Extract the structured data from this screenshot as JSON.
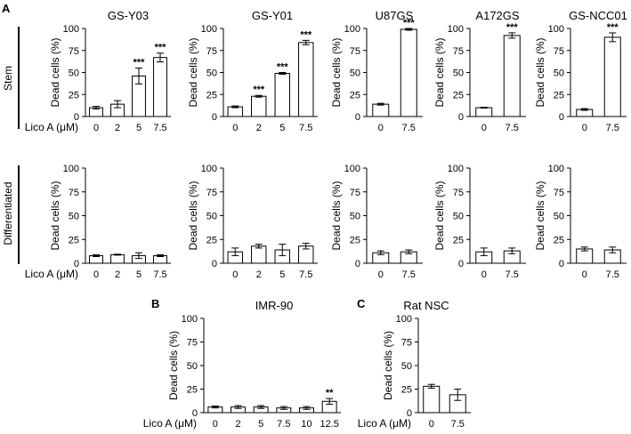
{
  "panel_letters": [
    "A",
    "B",
    "C"
  ],
  "row_labels": {
    "stem": "Stem",
    "differentiated": "Differentiated"
  },
  "ylabel": "Dead cells (%)",
  "x_label": "Lico A (μM)",
  "yticks": [
    "0",
    "25",
    "50",
    "75",
    "100"
  ],
  "chart_data": [
    {
      "id": "stem-gsy03",
      "type": "bar",
      "title": "GS-Y03",
      "row": "Stem",
      "ylabel": "Dead cells (%)",
      "xlabel": "Lico A (μM)",
      "ylim": [
        0,
        100
      ],
      "categories": [
        "0",
        "2",
        "5",
        "7.5"
      ],
      "values": [
        10,
        14,
        46,
        67
      ],
      "errors": [
        1.5,
        4,
        9,
        5
      ],
      "significance": [
        "",
        "",
        "***",
        "***"
      ]
    },
    {
      "id": "stem-gsy01",
      "type": "bar",
      "title": "GS-Y01",
      "row": "Stem",
      "ylabel": "Dead cells (%)",
      "xlabel": "Lico A (μM)",
      "ylim": [
        0,
        100
      ],
      "categories": [
        "0",
        "2",
        "5",
        "7.5"
      ],
      "values": [
        11,
        23,
        49,
        84
      ],
      "errors": [
        1,
        1,
        1,
        2.5
      ],
      "significance": [
        "",
        "***",
        "***",
        "***"
      ]
    },
    {
      "id": "stem-u87gs",
      "type": "bar",
      "title": "U87GS",
      "row": "Stem",
      "ylabel": "Dead cells (%)",
      "xlabel": "Lico A (μM)",
      "ylim": [
        0,
        100
      ],
      "categories": [
        "0",
        "7.5"
      ],
      "values": [
        14,
        99
      ],
      "errors": [
        1,
        1
      ],
      "significance": [
        "",
        "***"
      ]
    },
    {
      "id": "stem-a172gs",
      "type": "bar",
      "title": "A172GS",
      "row": "Stem",
      "ylabel": "Dead cells (%)",
      "xlabel": "Lico A (μM)",
      "ylim": [
        0,
        100
      ],
      "categories": [
        "0",
        "7.5"
      ],
      "values": [
        10,
        92
      ],
      "errors": [
        0.5,
        3
      ],
      "significance": [
        "",
        "***"
      ]
    },
    {
      "id": "stem-gsncc01",
      "type": "bar",
      "title": "GS-NCC01",
      "row": "Stem",
      "ylabel": "Dead cells (%)",
      "xlabel": "Lico A (μM)",
      "ylim": [
        0,
        100
      ],
      "categories": [
        "0",
        "7.5"
      ],
      "values": [
        8,
        90
      ],
      "errors": [
        1,
        5
      ],
      "significance": [
        "",
        "***"
      ]
    },
    {
      "id": "diff-gsy03",
      "type": "bar",
      "title": "",
      "row": "Differentiated",
      "ylabel": "Dead cells (%)",
      "xlabel": "Lico A (μM)",
      "ylim": [
        0,
        100
      ],
      "categories": [
        "0",
        "2",
        "5",
        "7.5"
      ],
      "values": [
        8,
        9,
        8,
        8
      ],
      "errors": [
        1,
        0.5,
        3,
        1
      ],
      "significance": [
        "",
        "",
        "",
        ""
      ]
    },
    {
      "id": "diff-gsy01",
      "type": "bar",
      "title": "",
      "row": "Differentiated",
      "ylabel": "Dead cells (%)",
      "xlabel": "Lico A (μM)",
      "ylim": [
        0,
        100
      ],
      "categories": [
        "0",
        "2",
        "5",
        "7.5"
      ],
      "values": [
        12,
        18,
        14,
        18
      ],
      "errors": [
        4,
        2,
        6,
        3
      ],
      "significance": [
        "",
        "",
        "",
        ""
      ]
    },
    {
      "id": "diff-u87gs",
      "type": "bar",
      "title": "",
      "row": "Differentiated",
      "ylabel": "Dead cells (%)",
      "xlabel": "Lico A (μM)",
      "ylim": [
        0,
        100
      ],
      "categories": [
        "0",
        "7.5"
      ],
      "values": [
        11,
        12
      ],
      "errors": [
        2,
        2
      ],
      "significance": [
        "",
        ""
      ]
    },
    {
      "id": "diff-a172gs",
      "type": "bar",
      "title": "",
      "row": "Differentiated",
      "ylabel": "Dead cells (%)",
      "xlabel": "Lico A (μM)",
      "ylim": [
        0,
        100
      ],
      "categories": [
        "0",
        "7.5"
      ],
      "values": [
        12,
        13
      ],
      "errors": [
        4,
        3
      ],
      "significance": [
        "",
        ""
      ]
    },
    {
      "id": "diff-gsncc01",
      "type": "bar",
      "title": "",
      "row": "Differentiated",
      "ylabel": "Dead cells (%)",
      "xlabel": "Lico A (μM)",
      "ylim": [
        0,
        100
      ],
      "categories": [
        "0",
        "7.5"
      ],
      "values": [
        15,
        14
      ],
      "errors": [
        2,
        3
      ],
      "significance": [
        "",
        ""
      ]
    },
    {
      "id": "imr90",
      "type": "bar",
      "title": "IMR-90",
      "row": "",
      "ylabel": "Dead cells (%)",
      "xlabel": "Lico A (μM)",
      "ylim": [
        0,
        100
      ],
      "categories": [
        "0",
        "2",
        "5",
        "7.5",
        "10",
        "12.5"
      ],
      "values": [
        6,
        6,
        6,
        5,
        5,
        12
      ],
      "errors": [
        1,
        1.5,
        1.5,
        1.5,
        1.5,
        3
      ],
      "significance": [
        "",
        "",
        "",
        "",
        "",
        "**"
      ]
    },
    {
      "id": "ratnsc",
      "type": "bar",
      "title": "Rat NSC",
      "row": "",
      "ylabel": "Dead cells (%)",
      "xlabel": "Lico A (μM)",
      "ylim": [
        0,
        100
      ],
      "categories": [
        "0",
        "7.5"
      ],
      "values": [
        28,
        19
      ],
      "errors": [
        2,
        6
      ],
      "significance": [
        "",
        ""
      ]
    }
  ]
}
